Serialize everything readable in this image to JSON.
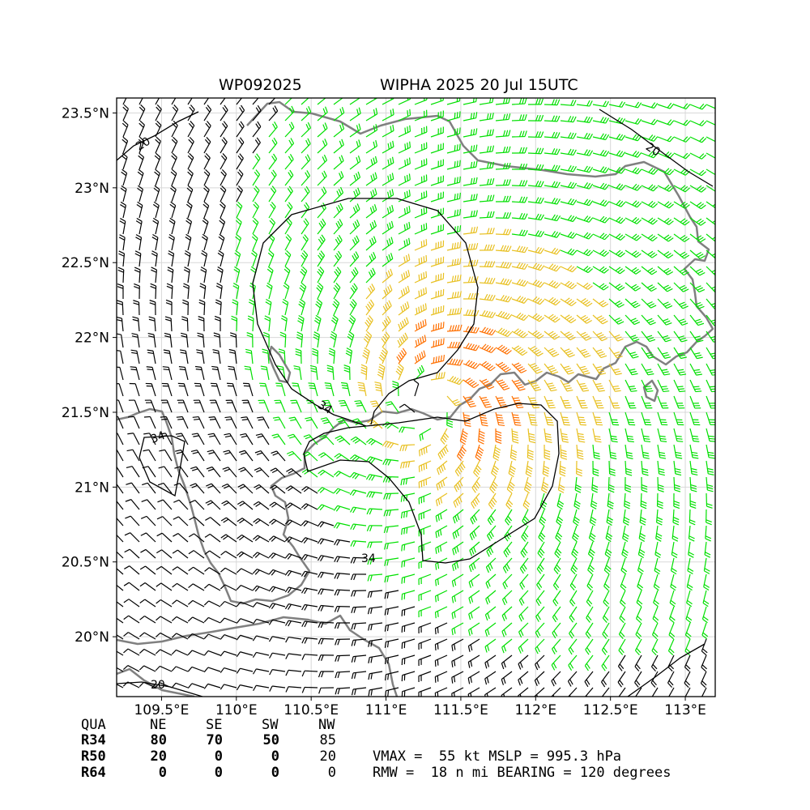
{
  "title": {
    "storm_id": "WP092025",
    "storm_time": "WIPHA 2025 20 Jul 15UTC"
  },
  "map": {
    "lon_range": [
      109.2,
      113.2
    ],
    "lat_range": [
      19.6,
      23.6
    ],
    "lon_ticks": [
      109.5,
      110.0,
      110.5,
      111.0,
      111.5,
      112.0,
      112.5,
      113.0
    ],
    "lat_ticks": [
      20.0,
      20.5,
      21.0,
      21.5,
      22.0,
      22.5,
      23.0,
      23.5
    ],
    "lon_tick_labels": [
      "109.5°E",
      "110°E",
      "110.5°E",
      "111°E",
      "111.5°E",
      "112°E",
      "112.5°E",
      "113°E"
    ],
    "lat_tick_labels": [
      "20°N",
      "20.5°N",
      "21°N",
      "21.5°N",
      "22°N",
      "22.5°N",
      "23°N",
      "23.5°N"
    ],
    "gridlines": true,
    "coastline_color": "#808080",
    "contour_labels": [
      "20",
      "20",
      "20",
      "34",
      "34",
      "34"
    ],
    "wind_colors": {
      "below_34kt": "#00e000",
      "34_to_50kt": "#e8c020",
      "50_to_64kt": "#ff7000",
      "below_20kt": "#000000"
    },
    "storm_center": {
      "lon": 111.27,
      "lat": 21.55
    },
    "max_wind_kt": 55,
    "rmw_nmi": 18,
    "bearing_deg": 120
  },
  "table": {
    "header": [
      "QUA",
      "NE",
      "SE",
      "SW",
      "NW"
    ],
    "rows": [
      {
        "label": "R34",
        "values": [
          "80",
          "70",
          "50",
          "85"
        ]
      },
      {
        "label": "R50",
        "values": [
          "20",
          "0",
          "0",
          "20"
        ]
      },
      {
        "label": "R64",
        "values": [
          "0",
          "0",
          "0",
          "0"
        ]
      }
    ]
  },
  "summary": {
    "line1": "VMAX =  55 kt MSLP = 995.3 hPa",
    "line2": "RMW =  18 n mi BEARING = 120 degrees"
  }
}
